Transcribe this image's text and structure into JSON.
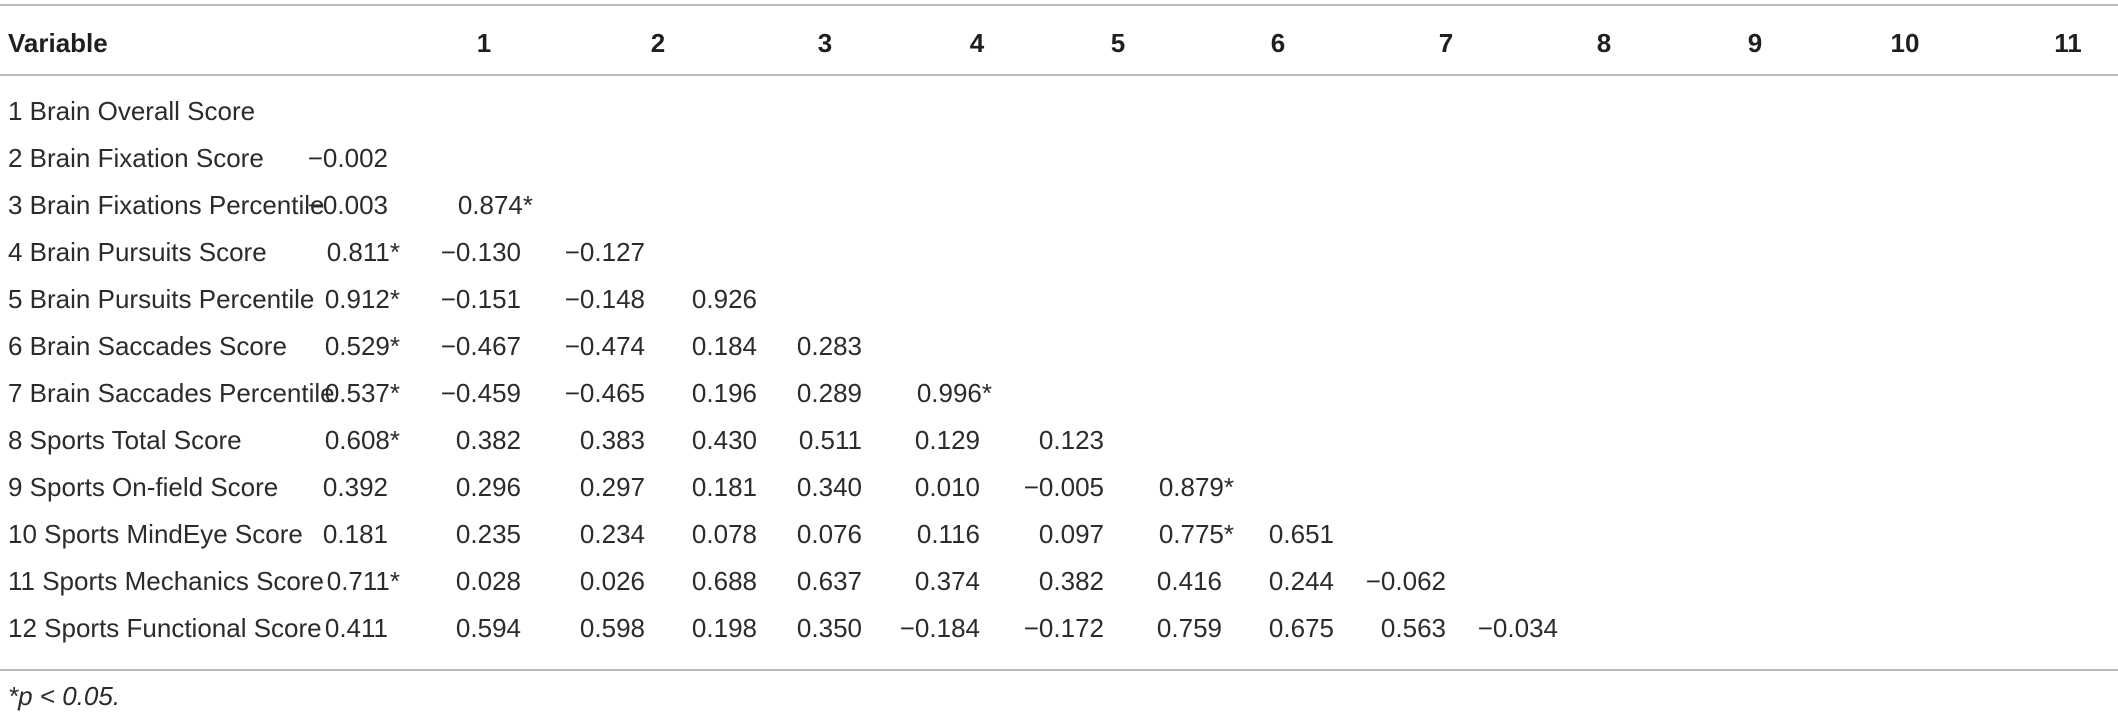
{
  "table": {
    "headers": [
      "Variable",
      "1",
      "2",
      "3",
      "4",
      "5",
      "6",
      "7",
      "8",
      "9",
      "10",
      "11"
    ],
    "rows": [
      {
        "label": "1 Brain Overall Score",
        "values": [
          "",
          "",
          "",
          "",
          "",
          "",
          "",
          "",
          "",
          "",
          ""
        ]
      },
      {
        "label": "2 Brain Fixation Score",
        "values": [
          "−0.002",
          "",
          "",
          "",
          "",
          "",
          "",
          "",
          "",
          "",
          ""
        ]
      },
      {
        "label": "3 Brain Fixations Percentile",
        "values": [
          "−0.003",
          "0.874*",
          "",
          "",
          "",
          "",
          "",
          "",
          "",
          "",
          ""
        ]
      },
      {
        "label": "4 Brain Pursuits Score",
        "values": [
          "0.811*",
          "−0.130",
          "−0.127",
          "",
          "",
          "",
          "",
          "",
          "",
          "",
          ""
        ]
      },
      {
        "label": "5 Brain Pursuits Percentile",
        "values": [
          "0.912*",
          "−0.151",
          "−0.148",
          "0.926",
          "",
          "",
          "",
          "",
          "",
          "",
          ""
        ]
      },
      {
        "label": "6 Brain Saccades Score",
        "values": [
          "0.529*",
          "−0.467",
          "−0.474",
          "0.184",
          "0.283",
          "",
          "",
          "",
          "",
          "",
          ""
        ]
      },
      {
        "label": "7 Brain Saccades Percentile",
        "values": [
          "0.537*",
          "−0.459",
          "−0.465",
          "0.196",
          "0.289",
          "0.996*",
          "",
          "",
          "",
          "",
          ""
        ]
      },
      {
        "label": "8 Sports Total Score",
        "values": [
          "0.608*",
          "0.382",
          "0.383",
          "0.430",
          "0.511",
          "0.129",
          "0.123",
          "",
          "",
          "",
          ""
        ]
      },
      {
        "label": "9 Sports On-field Score",
        "values": [
          "0.392",
          "0.296",
          "0.297",
          "0.181",
          "0.340",
          "0.010",
          "−0.005",
          "0.879*",
          "",
          "",
          ""
        ]
      },
      {
        "label": "10 Sports MindEye Score",
        "values": [
          "0.181",
          "0.235",
          "0.234",
          "0.078",
          "0.076",
          "0.116",
          "0.097",
          "0.775*",
          "0.651",
          "",
          ""
        ]
      },
      {
        "label": "11 Sports Mechanics Score",
        "values": [
          "0.711*",
          "0.028",
          "0.026",
          "0.688",
          "0.637",
          "0.374",
          "0.382",
          "0.416",
          "0.244",
          "−0.062",
          ""
        ]
      },
      {
        "label": "12 Sports Functional Score",
        "values": [
          "0.411",
          "0.594",
          "0.598",
          "0.198",
          "0.350",
          "−0.184",
          "−0.172",
          "0.759",
          "0.675",
          "0.563",
          "−0.034"
        ]
      }
    ]
  },
  "footnote": "*p < 0.05."
}
